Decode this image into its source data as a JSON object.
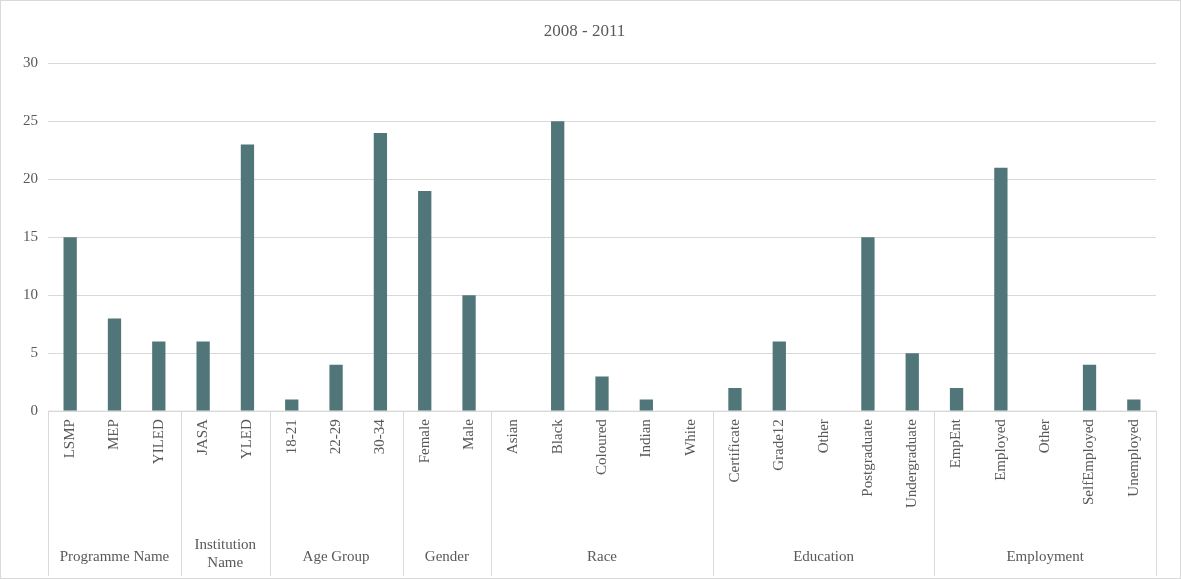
{
  "chart_data": {
    "type": "bar",
    "title": "2008 - 2011",
    "categories": [
      "LSMP",
      "MEP",
      "YILED",
      "JASA",
      "YLED",
      "18-21",
      "22-29",
      "30-34",
      "Female",
      "Male",
      "Asian",
      "Black",
      "Coloured",
      "Indian",
      "White",
      "Certificate",
      "Grade12",
      "Other",
      "Postgraduate",
      "Undergraduate",
      "EmpEnt",
      "Employed",
      "Other",
      "SelfEmployed",
      "Unemployed"
    ],
    "series": [
      {
        "color": "#517679",
        "values": [
          15,
          8,
          6,
          null,
          null,
          null,
          null,
          null,
          null,
          null,
          null,
          null,
          null,
          null,
          null,
          null,
          null,
          null,
          null,
          null,
          null,
          null,
          null,
          null,
          null
        ]
      },
      {
        "color": "#517679",
        "values": [
          null,
          null,
          null,
          6,
          23,
          null,
          null,
          null,
          null,
          null,
          null,
          null,
          null,
          null,
          null,
          null,
          null,
          null,
          null,
          null,
          null,
          null,
          null,
          null,
          null
        ]
      },
      {
        "color": "#517679",
        "values": [
          null,
          null,
          null,
          null,
          null,
          1,
          4,
          24,
          null,
          null,
          null,
          null,
          null,
          null,
          null,
          null,
          null,
          null,
          null,
          null,
          null,
          null,
          null,
          null,
          null
        ]
      },
      {
        "color": "#517679",
        "values": [
          null,
          null,
          null,
          null,
          null,
          null,
          null,
          null,
          19,
          10,
          null,
          null,
          null,
          null,
          null,
          null,
          null,
          null,
          null,
          null,
          null,
          null,
          null,
          null,
          null
        ]
      },
      {
        "color": "#517679",
        "values": [
          null,
          null,
          null,
          null,
          null,
          null,
          null,
          null,
          null,
          null,
          0,
          25,
          3,
          1,
          0,
          null,
          null,
          null,
          null,
          null,
          null,
          null,
          null,
          null,
          null
        ]
      },
      {
        "color": "#517679",
        "values": [
          null,
          null,
          null,
          null,
          null,
          null,
          null,
          null,
          null,
          null,
          null,
          null,
          null,
          null,
          null,
          2,
          6,
          0,
          15,
          5,
          null,
          null,
          null,
          null,
          null
        ]
      },
      {
        "color": "#517679",
        "values": [
          null,
          null,
          null,
          null,
          null,
          null,
          null,
          null,
          null,
          null,
          null,
          null,
          null,
          null,
          null,
          null,
          null,
          null,
          null,
          null,
          2,
          21,
          0,
          4,
          1
        ]
      }
    ],
    "ylim": [
      0,
      30
    ],
    "yticks": [
      0,
      5,
      10,
      15,
      20,
      25,
      30
    ],
    "grid": "y",
    "legend": false,
    "annotations": [
      "Programme Name",
      "Institution Name",
      "Age Group",
      "Gender",
      "Race",
      "Education",
      "Employment"
    ]
  }
}
